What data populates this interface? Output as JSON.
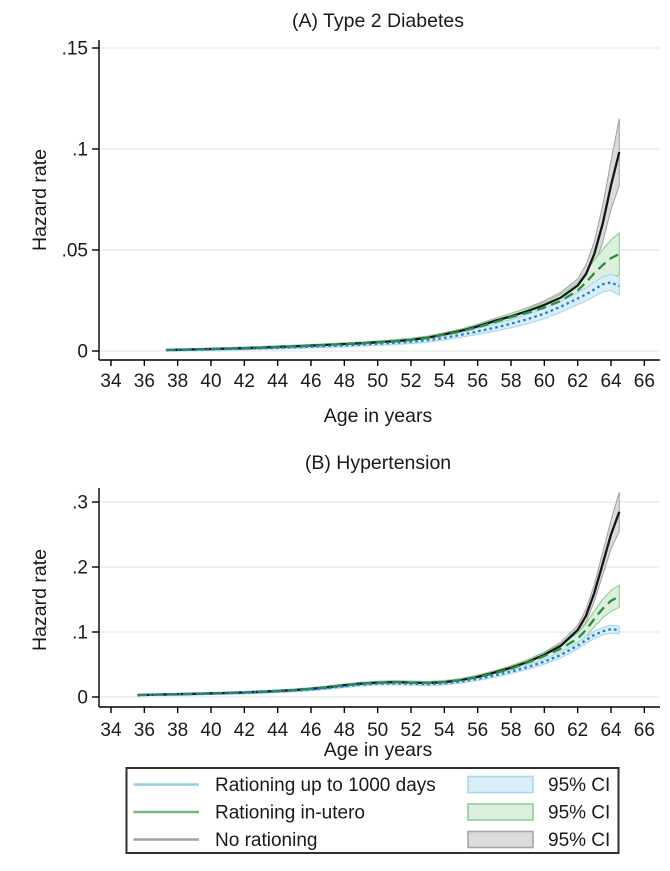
{
  "figure": {
    "background_color": "#ffffff",
    "grid_color": "#e7e7e7",
    "axis_color": "#000000"
  },
  "chart_data": [
    {
      "id": "panel_a",
      "type": "line",
      "title": "(A) Type 2 Diabetes",
      "xlabel": "Age in years",
      "ylabel": "Hazard rate",
      "xlim": [
        33,
        67
      ],
      "xticks": [
        34,
        36,
        38,
        40,
        42,
        44,
        46,
        48,
        50,
        52,
        54,
        56,
        58,
        60,
        62,
        64,
        66
      ],
      "ylim": [
        0,
        0.155
      ],
      "yticks": [
        0,
        0.05,
        0.1,
        0.15
      ],
      "ytick_labels": [
        "0",
        ".05",
        ".1",
        ".15"
      ],
      "grid": "horizontal",
      "legend_position": "bottom",
      "series": [
        {
          "name": "Rationing up to 1000 days",
          "dash": "dotted",
          "line_color": "#1e7fbe",
          "band_fill": "#daeef9",
          "band_stroke": "#a7d7ee",
          "x": [
            37.3,
            38,
            39,
            40,
            41,
            42,
            43,
            44,
            45,
            46,
            47,
            48,
            49,
            50,
            51,
            52,
            53,
            54,
            55,
            56,
            57,
            58,
            59,
            60,
            61,
            62,
            62.5,
            63,
            63.5,
            64,
            64.5
          ],
          "y": [
            0.0004,
            0.0005,
            0.0006,
            0.0008,
            0.001,
            0.0012,
            0.0014,
            0.0016,
            0.0019,
            0.0022,
            0.0025,
            0.0028,
            0.0032,
            0.0036,
            0.004,
            0.0046,
            0.0054,
            0.0065,
            0.008,
            0.0097,
            0.0115,
            0.0135,
            0.0158,
            0.0185,
            0.022,
            0.026,
            0.028,
            0.0305,
            0.033,
            0.034,
            0.032
          ],
          "ci_halfwidth_knots": [
            [
              37.3,
              0.0004
            ],
            [
              50,
              0.0008
            ],
            [
              55,
              0.0012
            ],
            [
              58,
              0.002
            ],
            [
              60,
              0.0025
            ],
            [
              62,
              0.003
            ],
            [
              63,
              0.0035
            ],
            [
              64,
              0.004
            ],
            [
              64.5,
              0.0045
            ]
          ]
        },
        {
          "name": "Rationing in-utero",
          "dash": "dashed",
          "line_color": "#2d8c3f",
          "band_fill": "#ddf0dd",
          "band_stroke": "#8ccf96",
          "x": [
            37.3,
            38,
            39,
            40,
            41,
            42,
            43,
            44,
            45,
            46,
            47,
            48,
            49,
            50,
            51,
            52,
            53,
            54,
            55,
            56,
            57,
            58,
            59,
            60,
            61,
            62,
            62.5,
            63,
            63.5,
            64,
            64.5
          ],
          "y": [
            0.0005,
            0.0006,
            0.0008,
            0.001,
            0.0012,
            0.0014,
            0.0017,
            0.002,
            0.0023,
            0.0026,
            0.003,
            0.0034,
            0.0038,
            0.0043,
            0.0048,
            0.0055,
            0.0065,
            0.008,
            0.0097,
            0.0118,
            0.0142,
            0.0168,
            0.019,
            0.0215,
            0.0248,
            0.03,
            0.034,
            0.0385,
            0.0425,
            0.046,
            0.048
          ],
          "ci_halfwidth_knots": [
            [
              37.3,
              0.0004
            ],
            [
              50,
              0.0007
            ],
            [
              55,
              0.001
            ],
            [
              58,
              0.0018
            ],
            [
              60,
              0.0025
            ],
            [
              62,
              0.004
            ],
            [
              63,
              0.0065
            ],
            [
              64,
              0.009
            ],
            [
              64.5,
              0.0105
            ]
          ]
        },
        {
          "name": "No rationing",
          "dash": "solid",
          "line_color": "#161616",
          "band_fill": "#dbdbdb",
          "band_stroke": "#a6a6a6",
          "x": [
            37.3,
            38,
            39,
            40,
            41,
            42,
            43,
            44,
            45,
            46,
            47,
            48,
            49,
            50,
            51,
            52,
            53,
            54,
            55,
            56,
            57,
            58,
            59,
            60,
            61,
            62,
            62.5,
            63,
            63.5,
            64,
            64.5
          ],
          "y": [
            0.0005,
            0.0006,
            0.0008,
            0.001,
            0.0012,
            0.0014,
            0.0017,
            0.002,
            0.0023,
            0.0026,
            0.003,
            0.0034,
            0.0038,
            0.0043,
            0.0048,
            0.0055,
            0.0066,
            0.0082,
            0.01,
            0.0122,
            0.0148,
            0.0172,
            0.0198,
            0.0228,
            0.0265,
            0.0325,
            0.038,
            0.048,
            0.063,
            0.082,
            0.0985
          ],
          "ci_halfwidth_knots": [
            [
              37.3,
              0.0003
            ],
            [
              50,
              0.0005
            ],
            [
              55,
              0.0009
            ],
            [
              58,
              0.0014
            ],
            [
              60,
              0.002
            ],
            [
              62,
              0.0032
            ],
            [
              63,
              0.006
            ],
            [
              64,
              0.012
            ],
            [
              64.5,
              0.0165
            ]
          ]
        }
      ]
    },
    {
      "id": "panel_b",
      "type": "line",
      "title": "(B) Hypertension",
      "xlabel": "Age in years",
      "ylabel": "Hazard rate",
      "xlim": [
        33,
        67
      ],
      "xticks": [
        34,
        36,
        38,
        40,
        42,
        44,
        46,
        48,
        50,
        52,
        54,
        56,
        58,
        60,
        62,
        64,
        66
      ],
      "ylim": [
        0,
        0.32
      ],
      "yticks": [
        0,
        0.1,
        0.2,
        0.3
      ],
      "ytick_labels": [
        "0",
        ".1",
        ".2",
        ".3"
      ],
      "grid": "horizontal",
      "legend_position": "bottom",
      "series": [
        {
          "name": "Rationing up to 1000 days",
          "dash": "dotted",
          "line_color": "#1e7fbe",
          "band_fill": "#daeef9",
          "band_stroke": "#a7d7ee",
          "x": [
            35.6,
            36,
            37,
            38,
            39,
            40,
            41,
            42,
            43,
            44,
            45,
            46,
            47,
            48,
            49,
            50,
            51,
            52,
            53,
            54,
            55,
            56,
            57,
            58,
            59,
            60,
            61,
            62,
            62.5,
            63,
            63.5,
            64,
            64.5
          ],
          "y": [
            0.0028,
            0.003,
            0.0035,
            0.004,
            0.0045,
            0.005,
            0.0057,
            0.0065,
            0.0074,
            0.0085,
            0.0098,
            0.0115,
            0.0138,
            0.0165,
            0.019,
            0.0205,
            0.021,
            0.0205,
            0.0198,
            0.021,
            0.0238,
            0.028,
            0.033,
            0.039,
            0.046,
            0.0545,
            0.065,
            0.079,
            0.0875,
            0.0955,
            0.101,
            0.1045,
            0.103
          ],
          "ci_halfwidth_knots": [
            [
              35.6,
              0.001
            ],
            [
              48,
              0.002
            ],
            [
              55,
              0.0025
            ],
            [
              58,
              0.003
            ],
            [
              60,
              0.004
            ],
            [
              62,
              0.005
            ],
            [
              63,
              0.0055
            ],
            [
              64.5,
              0.006
            ]
          ]
        },
        {
          "name": "Rationing in-utero",
          "dash": "dashed",
          "line_color": "#2d8c3f",
          "band_fill": "#ddf0dd",
          "band_stroke": "#8ccf96",
          "x": [
            35.6,
            36,
            37,
            38,
            39,
            40,
            41,
            42,
            43,
            44,
            45,
            46,
            47,
            48,
            49,
            50,
            51,
            52,
            53,
            54,
            55,
            56,
            57,
            58,
            59,
            60,
            61,
            62,
            62.5,
            63,
            63.5,
            64,
            64.5
          ],
          "y": [
            0.003,
            0.0032,
            0.0038,
            0.0043,
            0.0049,
            0.0055,
            0.0062,
            0.007,
            0.008,
            0.0092,
            0.0106,
            0.0125,
            0.015,
            0.018,
            0.0205,
            0.022,
            0.0228,
            0.0222,
            0.0215,
            0.0228,
            0.0258,
            0.0305,
            0.0365,
            0.0435,
            0.053,
            0.063,
            0.0745,
            0.09,
            0.103,
            0.12,
            0.136,
            0.148,
            0.155
          ],
          "ci_halfwidth_knots": [
            [
              35.6,
              0.001
            ],
            [
              48,
              0.002
            ],
            [
              55,
              0.0025
            ],
            [
              58,
              0.0035
            ],
            [
              60,
              0.005
            ],
            [
              62,
              0.008
            ],
            [
              63,
              0.012
            ],
            [
              64,
              0.016
            ],
            [
              64.5,
              0.017
            ]
          ]
        },
        {
          "name": "No rationing",
          "dash": "solid",
          "line_color": "#161616",
          "band_fill": "#dbdbdb",
          "band_stroke": "#a6a6a6",
          "x": [
            35.6,
            36,
            37,
            38,
            39,
            40,
            41,
            42,
            43,
            44,
            45,
            46,
            47,
            48,
            49,
            50,
            51,
            52,
            53,
            54,
            55,
            56,
            57,
            58,
            59,
            60,
            61,
            62,
            62.5,
            63,
            63.5,
            64,
            64.5
          ],
          "y": [
            0.003,
            0.0032,
            0.0038,
            0.0043,
            0.0049,
            0.0055,
            0.0062,
            0.007,
            0.008,
            0.0092,
            0.0106,
            0.0125,
            0.015,
            0.018,
            0.0205,
            0.022,
            0.0228,
            0.0222,
            0.0215,
            0.0228,
            0.026,
            0.031,
            0.0375,
            0.045,
            0.054,
            0.065,
            0.079,
            0.103,
            0.125,
            0.16,
            0.205,
            0.25,
            0.285
          ],
          "ci_halfwidth_knots": [
            [
              35.6,
              0.001
            ],
            [
              48,
              0.0018
            ],
            [
              55,
              0.0022
            ],
            [
              58,
              0.003
            ],
            [
              60,
              0.004
            ],
            [
              62,
              0.007
            ],
            [
              63,
              0.013
            ],
            [
              64,
              0.022
            ],
            [
              64.5,
              0.03
            ]
          ]
        }
      ]
    }
  ],
  "legend": {
    "rows": [
      {
        "label": "Rationing up to 1000 days",
        "ci_label": "95% CI",
        "sample_color": "#93cde9",
        "swatch_fill": "#daeef9",
        "swatch_border": "#a7d7ee"
      },
      {
        "label": "Rationing in-utero",
        "ci_label": "95% CI",
        "sample_color": "#6fb97b",
        "swatch_fill": "#ddf0dd",
        "swatch_border": "#8ccf96"
      },
      {
        "label": "No rationing",
        "ci_label": "95% CI",
        "sample_color": "#a2a2a2",
        "swatch_fill": "#dbdbdb",
        "swatch_border": "#a6a6a6"
      }
    ]
  }
}
